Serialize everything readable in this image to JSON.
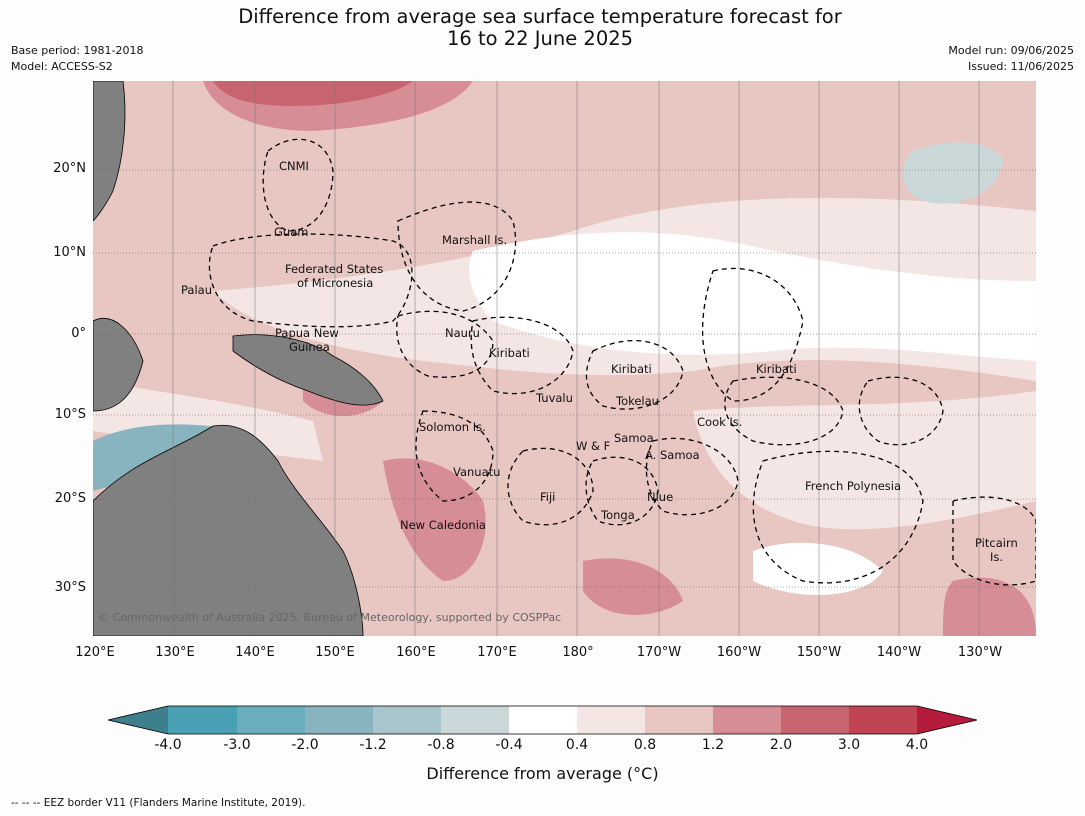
{
  "title_line1": "Difference from average sea surface temperature forecast for",
  "title_line2": "16 to 22 June 2025",
  "base_period": "Base period: 1981-2018",
  "model": "Model: ACCESS-S2",
  "model_run": "Model run: 09/06/2025",
  "issued": "Issued: 11/06/2025",
  "lat_labels": [
    "20°N",
    "10°N",
    "0°",
    "10°S",
    "20°S",
    "30°S"
  ],
  "lon_labels": [
    "120°E",
    "130°E",
    "140°E",
    "150°E",
    "160°E",
    "170°E",
    "180°",
    "170°W",
    "160°W",
    "150°W",
    "140°W",
    "130°W"
  ],
  "places": {
    "cnmi": "CNMI",
    "guam": "Guam",
    "marshall": "Marshall Is.",
    "fsm1": "Federated States",
    "fsm2": "of Micronesia",
    "palau": "Palau",
    "png1": "Papua New",
    "png2": "Guinea",
    "nauru": "Nauru",
    "kiribati_w": "Kiribati",
    "kiribati_c": "Kiribati",
    "kiribati_e": "Kiribati",
    "tuvalu": "Tuvalu",
    "tokelau": "Tokelau",
    "cook": "Cook Is.",
    "solomon": "Solomon Is.",
    "wf": "W & F",
    "samoa": "Samoa",
    "asamoa": "A. Samoa",
    "vanuatu": "Vanuatu",
    "fiji": "Fiji",
    "niue": "Niue",
    "tonga": "Tonga",
    "frenchpoly": "French Polynesia",
    "newcal": "New Caledonia",
    "pitcairn1": "Pitcairn",
    "pitcairn2": "Is."
  },
  "copyright": "© Commonwealth of Australia 2025, Bureau of Meteorology, supported by COSPPac",
  "colorbar": {
    "ticks": [
      "-4.0",
      "-3.0",
      "-2.0",
      "-1.2",
      "-0.8",
      "-0.4",
      "0.4",
      "0.8",
      "1.2",
      "2.0",
      "3.0",
      "4.0"
    ],
    "colors": [
      "#3d7f8c",
      "#49a0b3",
      "#6aaebc",
      "#88b4c0",
      "#a8c6cb",
      "#cad8da",
      "#ffffff",
      "#f4e6e4",
      "#e8c6c1",
      "#d78d96",
      "#c8646f",
      "#c04454",
      "#b51b3a"
    ],
    "label": "Difference from average (°C)"
  },
  "eez_note": "--  --  -- EEZ border V11 (Flanders Marine Institute, 2019)."
}
